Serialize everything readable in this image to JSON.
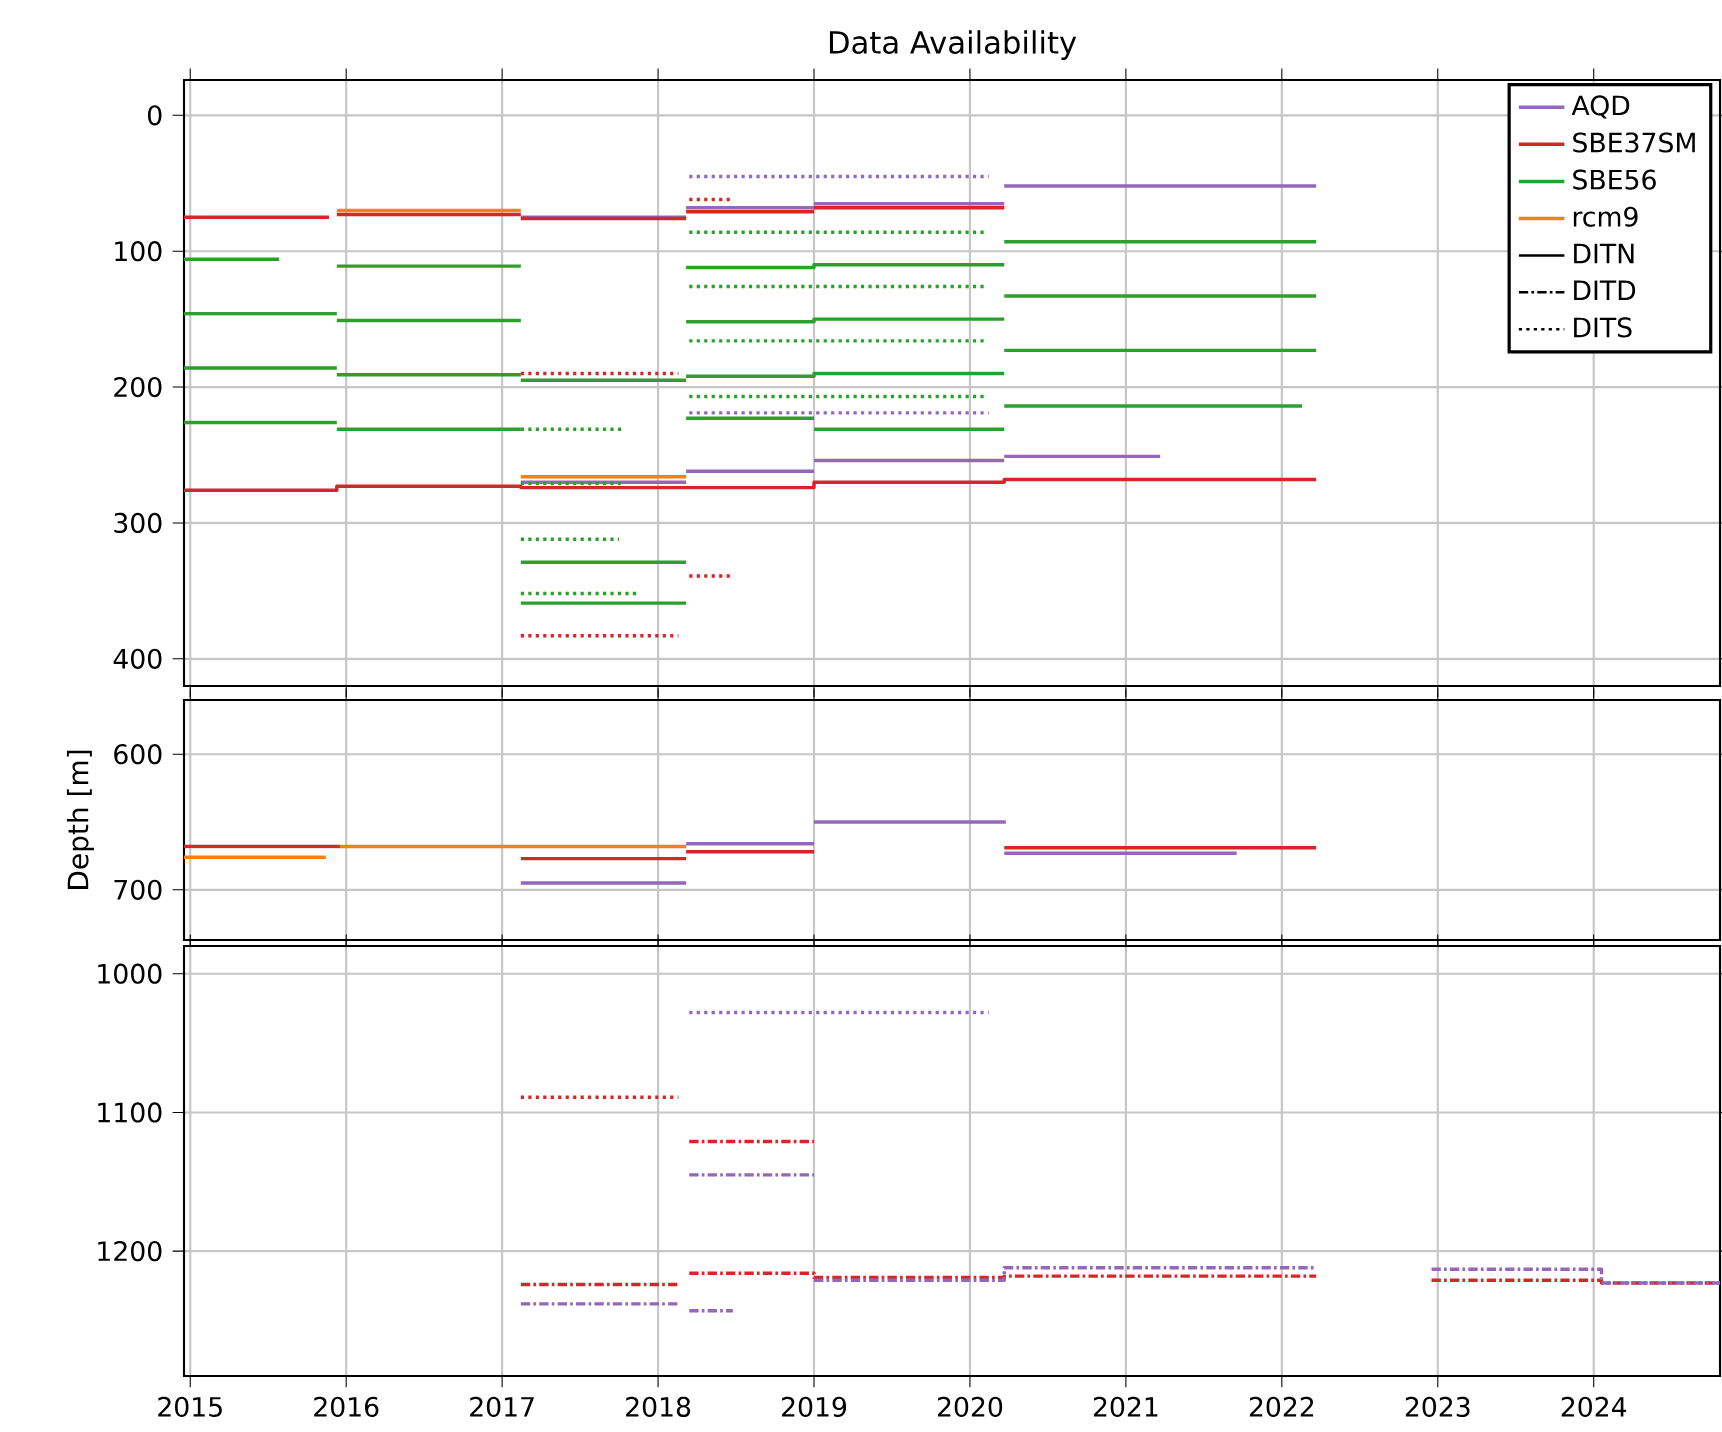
{
  "chart_data": [
    {
      "type": "line",
      "title": "Data Availability",
      "xlim": [
        2014.96,
        2024.81
      ],
      "xticks": [
        2015,
        2016,
        2017,
        2018,
        2019,
        2020,
        2021,
        2022,
        2023,
        2024
      ],
      "ylim": [
        420,
        -26
      ],
      "yticks": [
        0,
        100,
        200,
        300,
        400
      ],
      "grid": true,
      "legend": "top right",
      "tick_labels": "y",
      "series": [
        {
          "name": "AQD",
          "color": "#9467bd",
          "line_style": "solid",
          "x": [
            2017.12,
            2018.18
          ],
          "values": [
            75,
            75
          ]
        },
        {
          "color": "#9467bd",
          "line_style": "solid",
          "x": [
            2018.18,
            2019.0
          ],
          "values": [
            68,
            68
          ]
        },
        {
          "color": "#9467bd",
          "line_style": "solid",
          "x": [
            2019.0,
            2020.22
          ],
          "values": [
            65,
            65
          ]
        },
        {
          "color": "#9467bd",
          "line_style": "solid",
          "x": [
            2020.22,
            2022.22
          ],
          "values": [
            52,
            52
          ]
        },
        {
          "color": "#9467bd",
          "line_style": "solid",
          "x": [
            2017.12,
            2018.18
          ],
          "values": [
            270,
            270
          ]
        },
        {
          "color": "#9467bd",
          "line_style": "solid",
          "x": [
            2018.18,
            2019.0
          ],
          "values": [
            262,
            262
          ]
        },
        {
          "color": "#9467bd",
          "line_style": "solid",
          "x": [
            2019.0,
            2020.22
          ],
          "values": [
            254,
            254
          ]
        },
        {
          "color": "#9467bd",
          "line_style": "solid",
          "x": [
            2020.22,
            2021.22
          ],
          "values": [
            251,
            251
          ]
        },
        {
          "name": "SBE37SM",
          "color": "#d62728",
          "line_style": "solid",
          "x": [
            2014.96,
            2015.89
          ],
          "values": [
            75,
            75
          ]
        },
        {
          "color": "#d62728",
          "line_style": "solid",
          "x": [
            2015.94,
            2017.12
          ],
          "values": [
            73,
            73
          ]
        },
        {
          "color": "#d62728",
          "line_style": "solid",
          "x": [
            2017.12,
            2018.18
          ],
          "values": [
            76,
            76
          ]
        },
        {
          "color": "#d62728",
          "line_style": "solid",
          "x": [
            2018.18,
            2019.0
          ],
          "values": [
            71,
            71
          ]
        },
        {
          "color": "#d62728",
          "line_style": "solid",
          "x": [
            2019.0,
            2020.22
          ],
          "values": [
            68,
            68
          ]
        },
        {
          "type": "step",
          "color": "#d62728",
          "line_style": "solid",
          "x": [
            2014.96,
            2015.94,
            2017.12,
            2019.0,
            2020.22,
            2022.22
          ],
          "values": [
            276,
            273,
            274,
            270,
            268,
            268
          ]
        },
        {
          "name": "SBE56",
          "color": "#2ca02c",
          "line_style": "solid",
          "x": [
            2014.96,
            2015.57
          ],
          "values": [
            106,
            106
          ]
        },
        {
          "color": "#2ca02c",
          "line_style": "solid",
          "x": [
            2014.96,
            2015.94
          ],
          "values": [
            146,
            146
          ]
        },
        {
          "color": "#2ca02c",
          "line_style": "solid",
          "x": [
            2014.96,
            2015.94
          ],
          "values": [
            186,
            186
          ]
        },
        {
          "color": "#2ca02c",
          "line_style": "solid",
          "x": [
            2014.96,
            2015.94
          ],
          "values": [
            226,
            226
          ]
        },
        {
          "color": "#2ca02c",
          "line_style": "solid",
          "x": [
            2015.94,
            2017.12
          ],
          "values": [
            111,
            111
          ]
        },
        {
          "color": "#2ca02c",
          "line_style": "solid",
          "x": [
            2015.94,
            2017.12
          ],
          "values": [
            151,
            151
          ]
        },
        {
          "color": "#2ca02c",
          "line_style": "solid",
          "x": [
            2015.94,
            2017.12
          ],
          "values": [
            191,
            191
          ]
        },
        {
          "color": "#2ca02c",
          "line_style": "solid",
          "x": [
            2015.94,
            2017.12
          ],
          "values": [
            231,
            231
          ]
        },
        {
          "color": "#2ca02c",
          "line_style": "solid",
          "x": [
            2017.12,
            2018.18
          ],
          "values": [
            195,
            195
          ]
        },
        {
          "color": "#2ca02c",
          "line_style": "solid",
          "x": [
            2017.12,
            2018.18
          ],
          "values": [
            329,
            329
          ]
        },
        {
          "color": "#2ca02c",
          "line_style": "solid",
          "x": [
            2017.12,
            2018.18
          ],
          "values": [
            359,
            359
          ]
        },
        {
          "type": "step",
          "color": "#2ca02c",
          "line_style": "solid",
          "x": [
            2018.18,
            2019.0,
            2020.22
          ],
          "values": [
            112,
            110,
            110
          ]
        },
        {
          "type": "step",
          "color": "#2ca02c",
          "line_style": "solid",
          "x": [
            2018.18,
            2019.0,
            2020.22
          ],
          "values": [
            152,
            150,
            150
          ]
        },
        {
          "type": "step",
          "color": "#2ca02c",
          "line_style": "solid",
          "x": [
            2018.18,
            2019.0,
            2020.22
          ],
          "values": [
            192,
            190,
            190
          ]
        },
        {
          "color": "#2ca02c",
          "line_style": "solid",
          "x": [
            2018.18,
            2019.0
          ],
          "values": [
            223,
            223
          ]
        },
        {
          "color": "#2ca02c",
          "line_style": "solid",
          "x": [
            2019.0,
            2020.22
          ],
          "values": [
            231,
            231
          ]
        },
        {
          "color": "#2ca02c",
          "line_style": "solid",
          "x": [
            2020.22,
            2022.22
          ],
          "values": [
            93,
            93
          ]
        },
        {
          "color": "#2ca02c",
          "line_style": "solid",
          "x": [
            2020.22,
            2022.22
          ],
          "values": [
            133,
            133
          ]
        },
        {
          "color": "#2ca02c",
          "line_style": "solid",
          "x": [
            2020.22,
            2022.22
          ],
          "values": [
            173,
            173
          ]
        },
        {
          "color": "#2ca02c",
          "line_style": "solid",
          "x": [
            2020.22,
            2022.13
          ],
          "values": [
            214,
            214
          ]
        },
        {
          "name": "rcm9",
          "color": "#ff7f0e",
          "line_style": "solid",
          "x": [
            2015.94,
            2017.12
          ],
          "values": [
            70,
            70
          ]
        },
        {
          "color": "#ff7f0e",
          "line_style": "solid",
          "x": [
            2017.12,
            2018.18
          ],
          "values": [
            266,
            266
          ]
        },
        {
          "color": "#9467bd",
          "line_style": "dotted",
          "x": [
            2018.2,
            2020.12
          ],
          "values": [
            45,
            45
          ]
        },
        {
          "color": "#9467bd",
          "line_style": "dotted",
          "x": [
            2018.2,
            2020.12
          ],
          "values": [
            219,
            219
          ]
        },
        {
          "color": "#d62728",
          "line_style": "dotted",
          "x": [
            2018.2,
            2018.48
          ],
          "values": [
            62,
            62
          ]
        },
        {
          "color": "#d62728",
          "line_style": "dotted",
          "x": [
            2017.12,
            2018.13
          ],
          "values": [
            190,
            190
          ]
        },
        {
          "color": "#d62728",
          "line_style": "dotted",
          "x": [
            2018.2,
            2018.48
          ],
          "values": [
            339,
            339
          ]
        },
        {
          "color": "#d62728",
          "line_style": "dotted",
          "x": [
            2017.12,
            2018.13
          ],
          "values": [
            383,
            383
          ]
        },
        {
          "color": "#2ca02c",
          "line_style": "dotted",
          "x": [
            2018.2,
            2020.1
          ],
          "values": [
            86,
            86
          ]
        },
        {
          "color": "#2ca02c",
          "line_style": "dotted",
          "x": [
            2018.2,
            2020.1
          ],
          "values": [
            126,
            126
          ]
        },
        {
          "color": "#2ca02c",
          "line_style": "dotted",
          "x": [
            2018.2,
            2020.1
          ],
          "values": [
            166,
            166
          ]
        },
        {
          "color": "#2ca02c",
          "line_style": "dotted",
          "x": [
            2018.2,
            2020.1
          ],
          "values": [
            207,
            207
          ]
        },
        {
          "color": "#2ca02c",
          "line_style": "dotted",
          "x": [
            2017.12,
            2017.77
          ],
          "values": [
            231,
            231
          ]
        },
        {
          "color": "#2ca02c",
          "line_style": "dotted",
          "x": [
            2017.12,
            2017.76
          ],
          "values": [
            271,
            271
          ]
        },
        {
          "color": "#2ca02c",
          "line_style": "dotted",
          "x": [
            2017.12,
            2017.75
          ],
          "values": [
            312,
            312
          ]
        },
        {
          "color": "#2ca02c",
          "line_style": "dotted",
          "x": [
            2017.12,
            2017.86
          ],
          "values": [
            352,
            352
          ]
        },
        {
          "name": "DITN",
          "color": "#000000",
          "line_style": "solid"
        },
        {
          "name": "DITD",
          "color": "#000000",
          "line_style": "dashdot"
        },
        {
          "name": "DITS",
          "color": "#000000",
          "line_style": "dotted"
        }
      ]
    },
    {
      "type": "line",
      "ylabel": "Depth [m]",
      "xlim": [
        2014.96,
        2024.81
      ],
      "xticks": [
        2015,
        2016,
        2017,
        2018,
        2019,
        2020,
        2021,
        2022,
        2023,
        2024
      ],
      "ylim": [
        737,
        560
      ],
      "yticks": [
        600,
        700
      ],
      "grid": true,
      "tick_labels": "y",
      "series": [
        {
          "color": "#9467bd",
          "line_style": "solid",
          "x": [
            2017.12,
            2018.18
          ],
          "values": [
            695,
            695
          ]
        },
        {
          "color": "#9467bd",
          "line_style": "solid",
          "x": [
            2018.18,
            2019.0
          ],
          "values": [
            666,
            666
          ]
        },
        {
          "color": "#9467bd",
          "line_style": "solid",
          "x": [
            2019.0,
            2020.23
          ],
          "values": [
            650,
            650
          ]
        },
        {
          "color": "#9467bd",
          "line_style": "solid",
          "x": [
            2020.22,
            2021.71
          ],
          "values": [
            673,
            673
          ]
        },
        {
          "color": "#d62728",
          "line_style": "solid",
          "x": [
            2014.96,
            2015.96
          ],
          "values": [
            668,
            668
          ]
        },
        {
          "color": "#d62728",
          "line_style": "solid",
          "x": [
            2017.12,
            2018.18
          ],
          "values": [
            677,
            677
          ]
        },
        {
          "color": "#d62728",
          "line_style": "solid",
          "x": [
            2018.18,
            2019.0
          ],
          "values": [
            672,
            672
          ]
        },
        {
          "color": "#d62728",
          "line_style": "solid",
          "x": [
            2020.22,
            2022.22
          ],
          "values": [
            669,
            669
          ]
        },
        {
          "color": "#ff7f0e",
          "line_style": "solid",
          "x": [
            2014.96,
            2015.87
          ],
          "values": [
            676,
            676
          ]
        },
        {
          "color": "#ff7f0e",
          "line_style": "solid",
          "x": [
            2015.96,
            2018.18
          ],
          "values": [
            668,
            668
          ]
        }
      ]
    },
    {
      "type": "line",
      "xlim": [
        2014.96,
        2024.81
      ],
      "xticks": [
        2015,
        2016,
        2017,
        2018,
        2019,
        2020,
        2021,
        2022,
        2023,
        2024
      ],
      "ylim": [
        1290,
        980
      ],
      "yticks": [
        1000,
        1100,
        1200
      ],
      "grid": true,
      "series": [
        {
          "color": "#9467bd",
          "line_style": "dotted",
          "x": [
            2018.2,
            2020.12
          ],
          "values": [
            1028,
            1028
          ]
        },
        {
          "color": "#d62728",
          "line_style": "dotted",
          "x": [
            2017.12,
            2018.13
          ],
          "values": [
            1089,
            1089
          ]
        },
        {
          "color": "#d62728",
          "line_style": "dashdot",
          "x": [
            2018.2,
            2019.0
          ],
          "values": [
            1121,
            1121
          ]
        },
        {
          "color": "#d62728",
          "line_style": "dashdot",
          "x": [
            2017.12,
            2018.13
          ],
          "values": [
            1224,
            1224
          ]
        },
        {
          "type": "step",
          "color": "#d62728",
          "line_style": "dashdot",
          "x": [
            2018.2,
            2019.0,
            2020.22,
            2022.22
          ],
          "values": [
            1216,
            1219,
            1218,
            1218
          ]
        },
        {
          "type": "step",
          "color": "#d62728",
          "line_style": "dashdot",
          "x": [
            2022.96,
            2024.05,
            2024.81
          ],
          "values": [
            1221,
            1223,
            1223
          ]
        },
        {
          "color": "#9467bd",
          "line_style": "dashdot",
          "x": [
            2018.2,
            2019.0
          ],
          "values": [
            1145,
            1145
          ]
        },
        {
          "color": "#9467bd",
          "line_style": "dashdot",
          "x": [
            2017.12,
            2018.13
          ],
          "values": [
            1238,
            1238
          ]
        },
        {
          "color": "#9467bd",
          "line_style": "dashdot",
          "x": [
            2018.2,
            2018.48
          ],
          "values": [
            1243,
            1243
          ]
        },
        {
          "type": "step",
          "color": "#9467bd",
          "line_style": "dashdot",
          "x": [
            2019.0,
            2020.22,
            2022.22
          ],
          "values": [
            1221,
            1212,
            1212
          ]
        },
        {
          "type": "step",
          "color": "#9467bd",
          "line_style": "dashdot",
          "x": [
            2022.96,
            2024.05,
            2024.81
          ],
          "values": [
            1213,
            1223,
            1223
          ]
        }
      ]
    }
  ]
}
